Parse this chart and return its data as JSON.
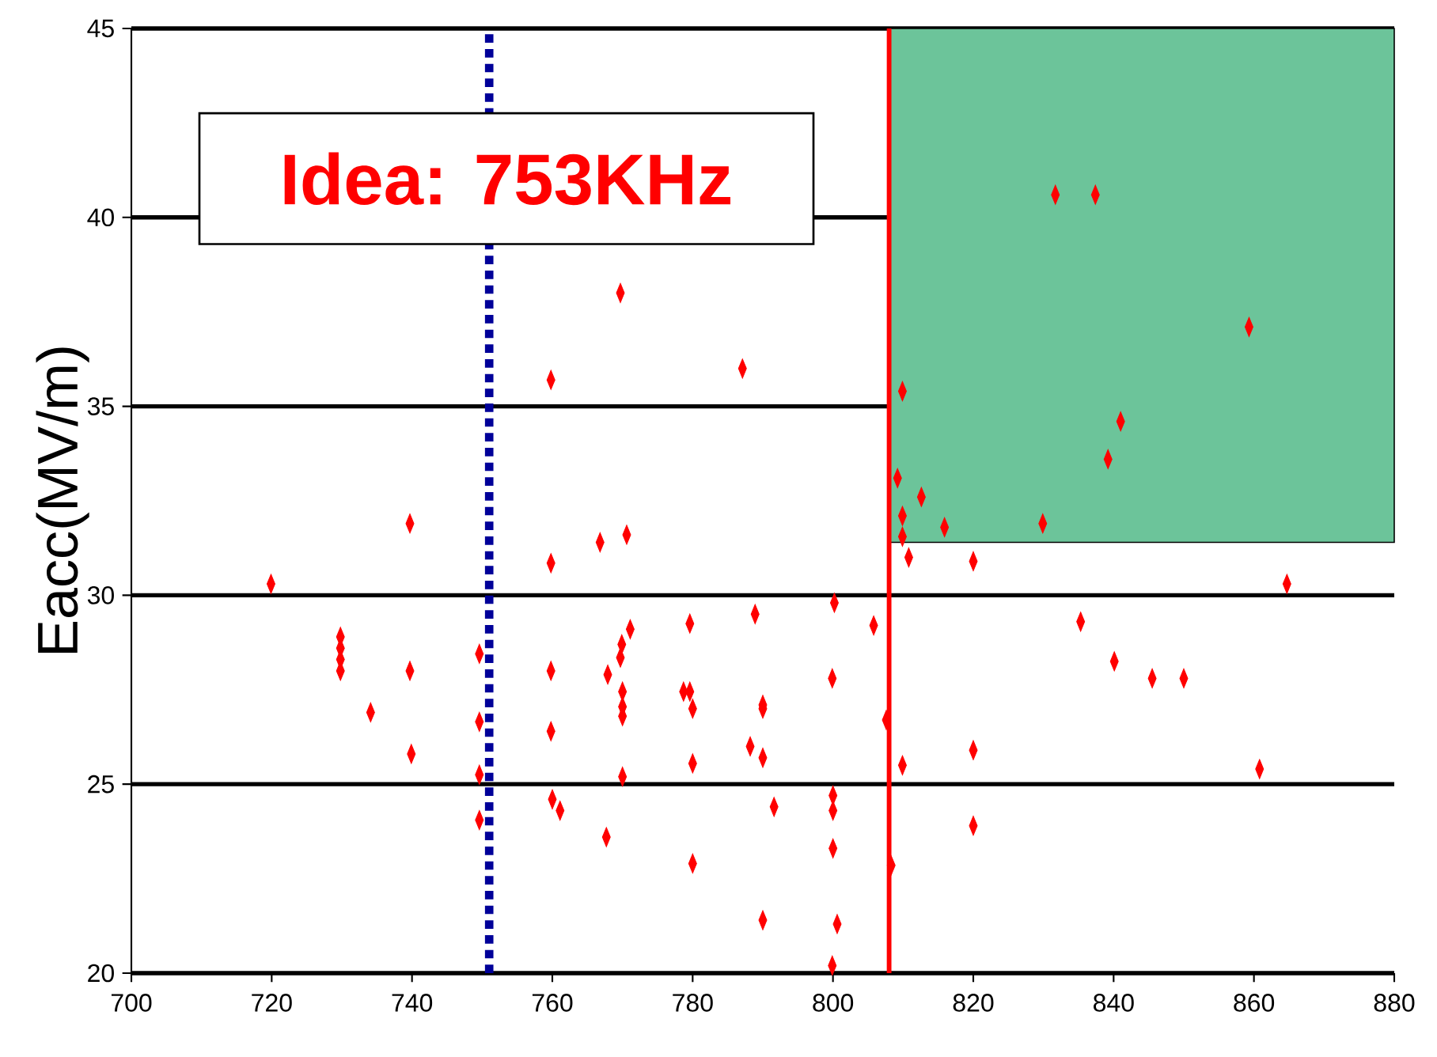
{
  "chart_data": {
    "type": "scatter",
    "ylabel": "Eacc(MV/m)",
    "x": [
      719.9,
      729.8,
      729.8,
      729.8,
      729.8,
      734.1,
      739.7,
      739.7,
      739.9,
      749.6,
      749.6,
      749.6,
      749.6,
      759.8,
      759.8,
      759.8,
      759.8,
      760,
      761.1,
      766.8,
      767.9,
      767.7,
      769.7,
      769.9,
      769.7,
      770,
      770,
      770,
      770,
      770.6,
      771.1,
      778.7,
      779.6,
      779.6,
      780,
      780,
      780,
      787.1,
      788.2,
      788.9,
      790,
      790,
      790,
      791.6,
      790,
      800.2,
      799.9,
      800,
      800,
      800,
      800.6,
      799.9,
      805.8,
      807.6,
      808.3,
      809.9,
      810.8,
      809.9,
      809.2,
      812.6,
      809.9,
      809.9,
      815.9,
      820,
      820,
      820,
      829.9,
      831.7,
      837.4,
      839.2,
      841,
      835.3,
      840.1,
      845.5,
      850,
      859.3,
      860.8,
      864.7
    ],
    "series": [
      {
        "color": "#ff0000",
        "values": [
          30.3,
          28.9,
          28.6,
          28.3,
          28.0,
          26.9,
          31.9,
          28.0,
          25.8,
          28.45,
          26.65,
          25.25,
          24.05,
          35.7,
          30.85,
          28.0,
          26.4,
          24.6,
          24.3,
          31.4,
          27.9,
          23.6,
          38.0,
          28.7,
          28.35,
          27.45,
          27.05,
          26.8,
          25.2,
          31.6,
          29.1,
          27.45,
          27.45,
          29.25,
          27.0,
          25.55,
          22.9,
          36.0,
          26.0,
          29.5,
          27.1,
          27.0,
          25.7,
          24.4,
          21.4,
          29.8,
          27.8,
          24.7,
          24.3,
          23.3,
          21.3,
          20.2,
          29.2,
          26.7,
          22.85,
          25.5,
          31.0,
          35.4,
          33.1,
          32.6,
          32.1,
          31.55,
          31.8,
          30.9,
          25.9,
          23.9,
          31.9,
          40.6,
          40.6,
          33.6,
          34.6,
          29.3,
          28.25,
          27.8,
          27.8,
          37.1,
          25.4,
          30.3
        ]
      }
    ],
    "marker": "diamond",
    "xlim": [
      700,
      880
    ],
    "xticks": [
      700,
      720,
      740,
      760,
      780,
      800,
      820,
      840,
      860,
      880
    ],
    "ylim": [
      20,
      45
    ],
    "yticks": [
      20,
      25,
      30,
      35,
      40,
      45
    ],
    "grid": "y",
    "ref_lines": [
      {
        "axis": "x",
        "value": 808,
        "color": "#ff0000",
        "line_style": "solid"
      },
      {
        "axis": "x",
        "value": 751,
        "color": "#000099",
        "line_style": "dotted"
      }
    ],
    "bands": [
      {
        "axis": "y",
        "from": 31.4,
        "to": 45,
        "color": "#6cc49a"
      }
    ],
    "annotations": [
      "Idea: 753KHz"
    ]
  }
}
